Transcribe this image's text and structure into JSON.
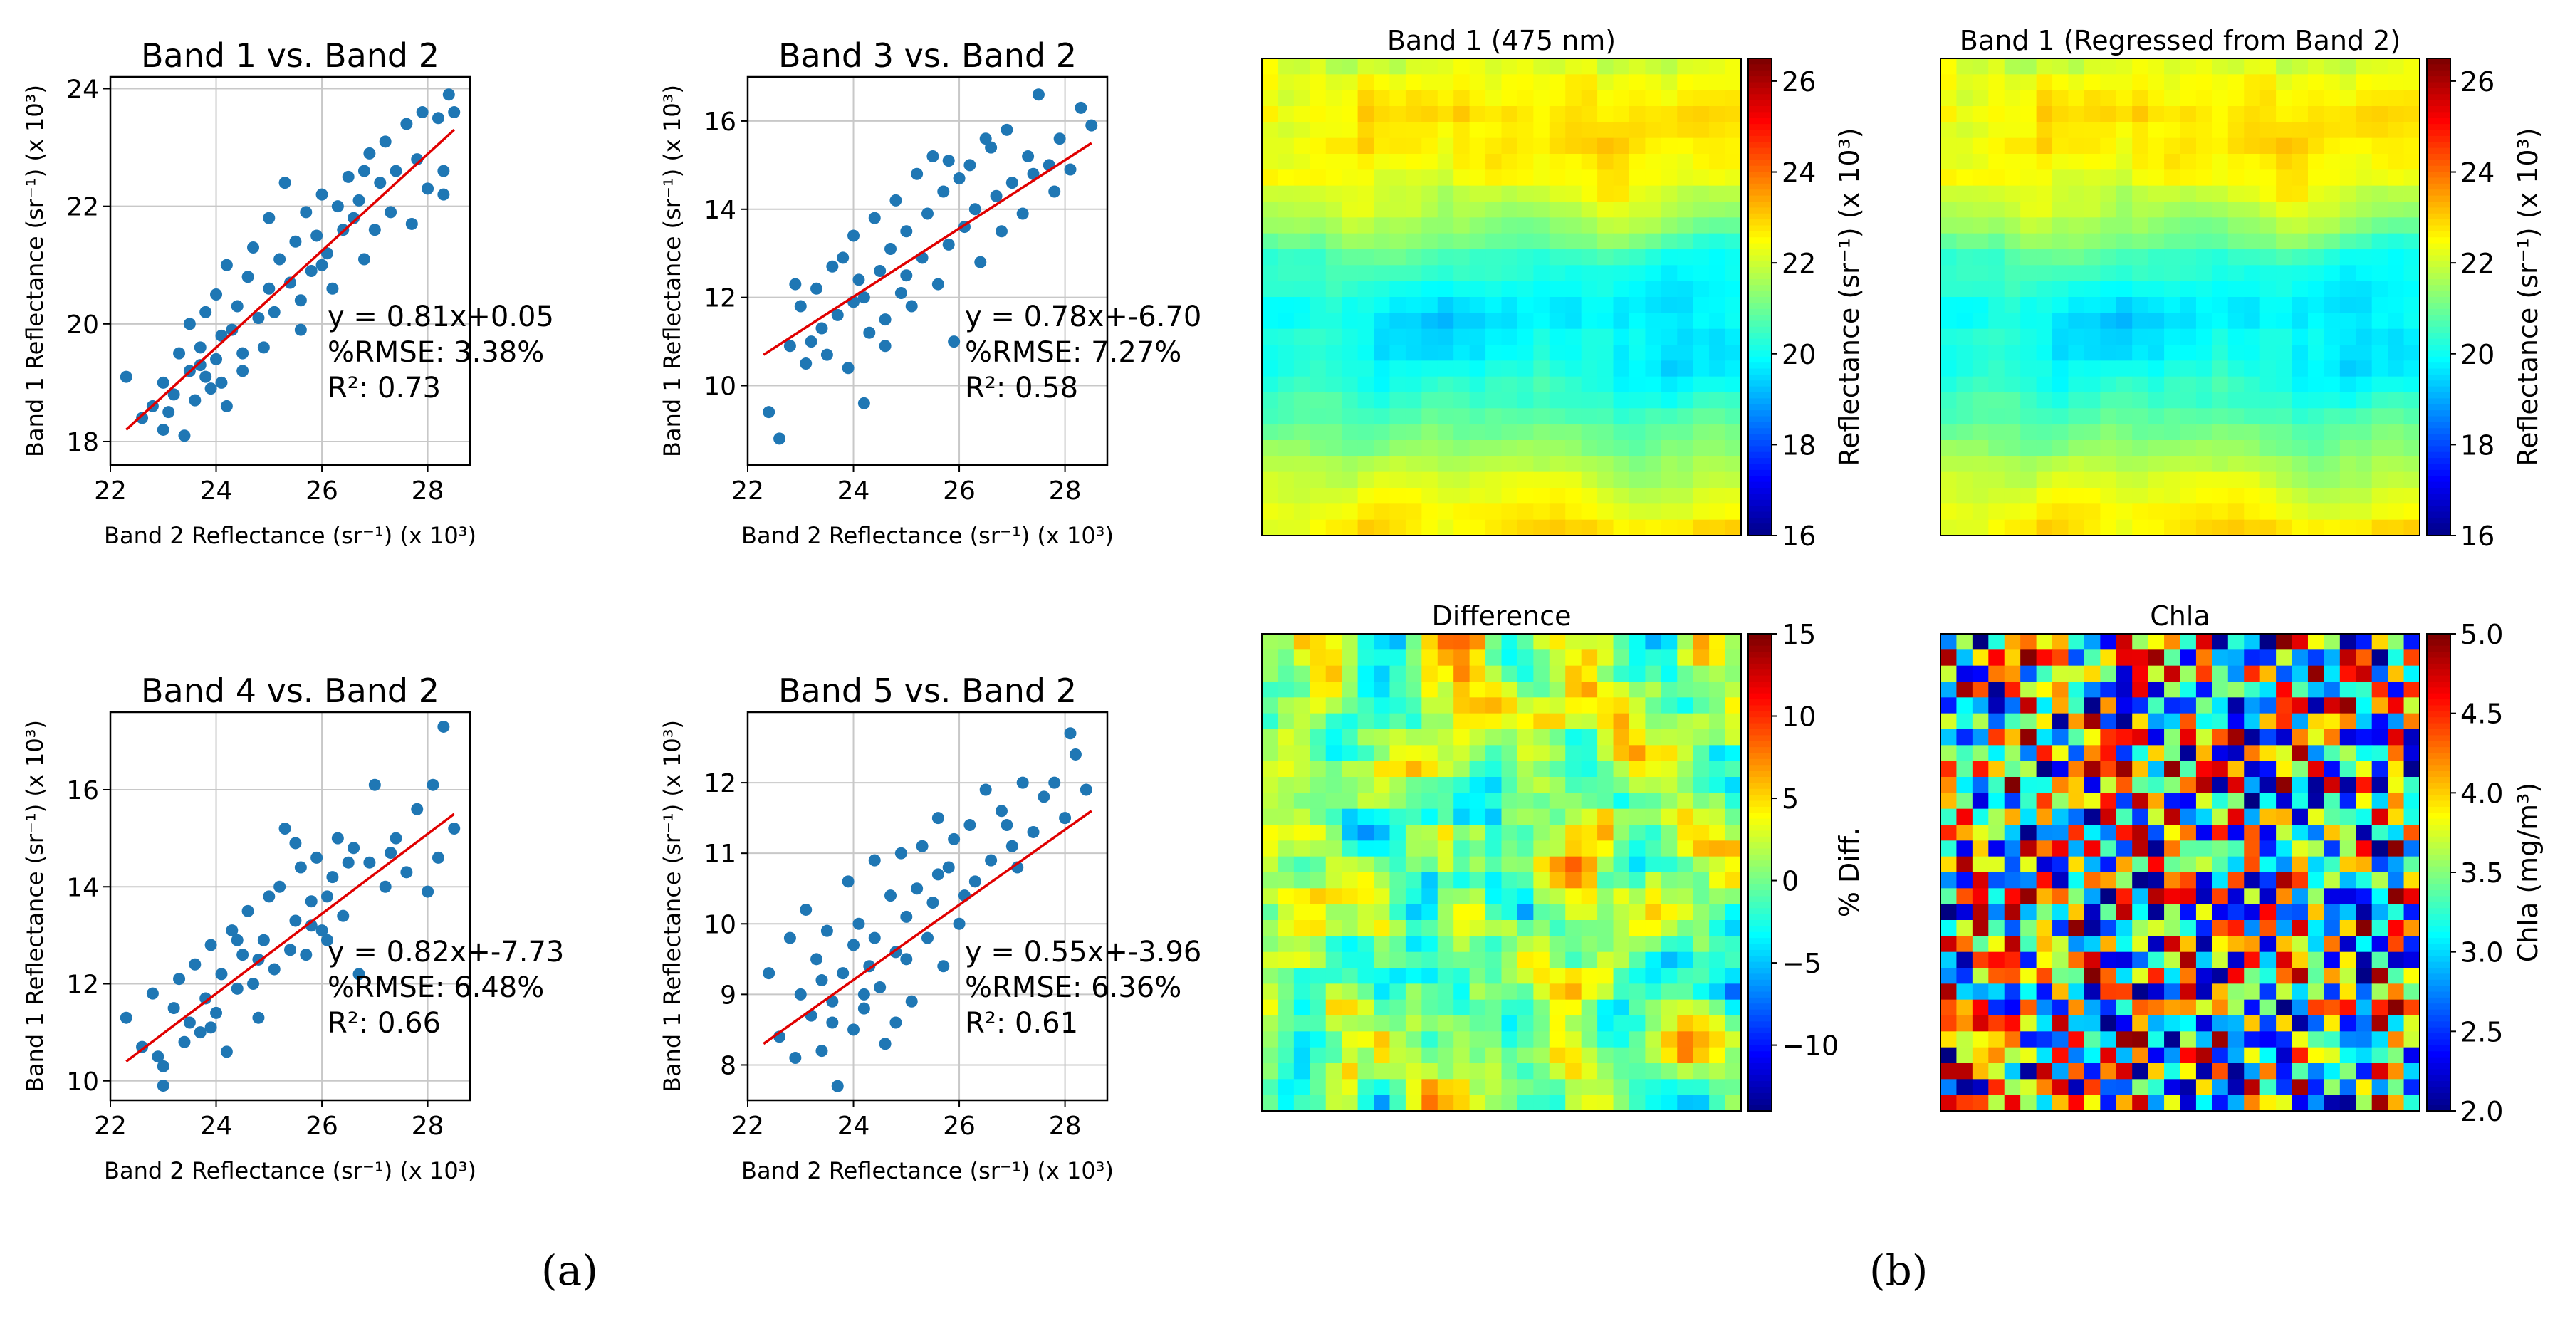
{
  "panel_labels": {
    "a": "(a)",
    "b": "(b)"
  },
  "scatter_common": {
    "xlabel": "Band 2 Reflectance (sr⁻¹) (x 10³)",
    "ylabel": "Band 1 Reflectance (sr⁻¹) (x 10³)"
  },
  "chart_data": [
    {
      "type": "scatter",
      "title": "Band 1 vs. Band 2",
      "xlabel": "Band 2 Reflectance (sr⁻¹) (x 10³)",
      "ylabel": "Band 1 Reflectance (sr⁻¹) (x 10³)",
      "xlim": [
        22,
        28.8
      ],
      "ylim": [
        17.6,
        24.2
      ],
      "xticks": [
        22,
        24,
        26,
        28
      ],
      "yticks": [
        18,
        20,
        22,
        24
      ],
      "grid": true,
      "fit": {
        "slope": 0.81,
        "intercept": 0.05,
        "x_range": [
          22.3,
          28.5
        ],
        "y_range": [
          18.2,
          23.3
        ]
      },
      "annotations": [
        "y = 0.81x+0.05",
        "%RMSE:  3.38%",
        "R²:  0.73"
      ],
      "points": [
        [
          22.3,
          19.1
        ],
        [
          22.6,
          18.4
        ],
        [
          22.8,
          18.6
        ],
        [
          23.0,
          19.0
        ],
        [
          23.0,
          18.2
        ],
        [
          23.2,
          18.8
        ],
        [
          23.3,
          19.5
        ],
        [
          23.4,
          18.1
        ],
        [
          23.5,
          19.2
        ],
        [
          23.5,
          20.0
        ],
        [
          23.6,
          18.7
        ],
        [
          23.7,
          19.6
        ],
        [
          23.8,
          19.1
        ],
        [
          23.8,
          20.2
        ],
        [
          23.9,
          18.9
        ],
        [
          24.0,
          19.4
        ],
        [
          24.0,
          20.5
        ],
        [
          24.1,
          19.8
        ],
        [
          24.2,
          18.6
        ],
        [
          24.2,
          21.0
        ],
        [
          24.3,
          19.9
        ],
        [
          24.4,
          20.3
        ],
        [
          24.5,
          19.2
        ],
        [
          24.6,
          20.8
        ],
        [
          24.7,
          21.3
        ],
        [
          24.8,
          20.1
        ],
        [
          24.9,
          19.6
        ],
        [
          25.0,
          20.6
        ],
        [
          25.0,
          21.8
        ],
        [
          25.1,
          20.2
        ],
        [
          25.2,
          21.1
        ],
        [
          25.3,
          22.4
        ],
        [
          25.4,
          20.7
        ],
        [
          25.5,
          21.4
        ],
        [
          25.6,
          19.9
        ],
        [
          25.7,
          21.9
        ],
        [
          25.8,
          20.9
        ],
        [
          25.9,
          21.5
        ],
        [
          26.0,
          22.2
        ],
        [
          26.1,
          21.2
        ],
        [
          26.2,
          20.6
        ],
        [
          26.3,
          22.0
        ],
        [
          26.4,
          21.6
        ],
        [
          26.5,
          22.5
        ],
        [
          26.6,
          21.8
        ],
        [
          26.7,
          22.1
        ],
        [
          26.8,
          21.1
        ],
        [
          26.9,
          22.9
        ],
        [
          27.0,
          21.6
        ],
        [
          27.1,
          22.4
        ],
        [
          27.2,
          23.1
        ],
        [
          27.3,
          21.9
        ],
        [
          27.4,
          22.6
        ],
        [
          27.6,
          23.4
        ],
        [
          27.7,
          21.7
        ],
        [
          27.8,
          22.8
        ],
        [
          27.9,
          23.6
        ],
        [
          28.0,
          22.3
        ],
        [
          28.2,
          23.5
        ],
        [
          28.3,
          22.6
        ],
        [
          28.4,
          23.9
        ],
        [
          28.5,
          23.6
        ],
        [
          28.3,
          22.2
        ],
        [
          23.1,
          18.5
        ],
        [
          24.5,
          19.5
        ],
        [
          25.6,
          20.4
        ],
        [
          26.8,
          22.6
        ],
        [
          24.1,
          19.0
        ],
        [
          23.7,
          19.3
        ],
        [
          26.0,
          21.0
        ]
      ]
    },
    {
      "type": "scatter",
      "title": "Band 3 vs. Band 2",
      "xlabel": "Band 2 Reflectance (sr⁻¹) (x 10³)",
      "ylabel": "Band 1 Reflectance (sr⁻¹) (x 10³)",
      "xlim": [
        22,
        28.8
      ],
      "ylim": [
        8.2,
        17.0
      ],
      "xticks": [
        22,
        24,
        26,
        28
      ],
      "yticks": [
        10,
        12,
        14,
        16
      ],
      "grid": true,
      "fit": {
        "slope": 0.78,
        "intercept": -6.7,
        "x_range": [
          22.3,
          28.5
        ],
        "y_range": [
          10.7,
          15.5
        ]
      },
      "annotations": [
        "y = 0.78x+-6.70",
        "%RMSE:  7.27%",
        "R²:  0.58"
      ],
      "points": [
        [
          22.4,
          9.4
        ],
        [
          22.6,
          8.8
        ],
        [
          22.8,
          10.9
        ],
        [
          23.0,
          11.8
        ],
        [
          23.1,
          10.5
        ],
        [
          23.3,
          12.2
        ],
        [
          23.4,
          11.3
        ],
        [
          23.5,
          10.7
        ],
        [
          23.6,
          12.7
        ],
        [
          23.7,
          11.6
        ],
        [
          23.8,
          12.9
        ],
        [
          23.9,
          10.4
        ],
        [
          24.0,
          11.9
        ],
        [
          24.0,
          13.4
        ],
        [
          24.1,
          12.4
        ],
        [
          24.2,
          9.6
        ],
        [
          24.3,
          11.2
        ],
        [
          24.4,
          13.8
        ],
        [
          24.5,
          12.6
        ],
        [
          24.6,
          11.5
        ],
        [
          24.7,
          13.1
        ],
        [
          24.8,
          14.2
        ],
        [
          24.9,
          12.1
        ],
        [
          25.0,
          13.5
        ],
        [
          25.1,
          11.8
        ],
        [
          25.2,
          14.8
        ],
        [
          25.3,
          12.9
        ],
        [
          25.4,
          13.9
        ],
        [
          25.5,
          15.2
        ],
        [
          25.6,
          12.3
        ],
        [
          25.7,
          14.4
        ],
        [
          25.8,
          13.2
        ],
        [
          25.9,
          11.0
        ],
        [
          26.0,
          14.7
        ],
        [
          26.1,
          13.6
        ],
        [
          26.2,
          15.0
        ],
        [
          26.3,
          14.0
        ],
        [
          26.4,
          12.8
        ],
        [
          26.6,
          15.4
        ],
        [
          26.7,
          14.3
        ],
        [
          26.8,
          13.5
        ],
        [
          26.9,
          15.8
        ],
        [
          27.0,
          14.6
        ],
        [
          27.2,
          13.9
        ],
        [
          27.3,
          15.2
        ],
        [
          27.4,
          14.8
        ],
        [
          27.5,
          16.6
        ],
        [
          27.7,
          15.0
        ],
        [
          27.9,
          15.6
        ],
        [
          28.1,
          14.9
        ],
        [
          28.3,
          16.3
        ],
        [
          28.5,
          15.9
        ],
        [
          24.2,
          12.0
        ],
        [
          23.2,
          11.0
        ],
        [
          25.0,
          12.5
        ],
        [
          26.5,
          15.6
        ],
        [
          27.8,
          14.4
        ],
        [
          22.9,
          12.3
        ],
        [
          24.6,
          10.9
        ],
        [
          25.8,
          15.1
        ]
      ]
    },
    {
      "type": "scatter",
      "title": "Band 4 vs. Band 2",
      "xlabel": "Band 2 Reflectance (sr⁻¹) (x 10³)",
      "ylabel": "Band 1 Reflectance (sr⁻¹) (x 10³)",
      "xlim": [
        22,
        28.8
      ],
      "ylim": [
        9.6,
        17.6
      ],
      "xticks": [
        22,
        24,
        26,
        28
      ],
      "yticks": [
        10,
        12,
        14,
        16
      ],
      "grid": true,
      "fit": {
        "slope": 0.82,
        "intercept": -7.73,
        "x_range": [
          22.3,
          28.5
        ],
        "y_range": [
          10.4,
          15.5
        ]
      },
      "annotations": [
        "y = 0.82x+-7.73",
        "%RMSE:  6.48%",
        "R²:  0.66"
      ],
      "points": [
        [
          22.3,
          11.3
        ],
        [
          22.6,
          10.7
        ],
        [
          22.8,
          11.8
        ],
        [
          23.0,
          10.3
        ],
        [
          23.0,
          9.9
        ],
        [
          23.2,
          11.5
        ],
        [
          23.3,
          12.1
        ],
        [
          23.4,
          10.8
        ],
        [
          23.5,
          11.2
        ],
        [
          23.6,
          12.4
        ],
        [
          23.7,
          11.0
        ],
        [
          23.8,
          11.7
        ],
        [
          23.9,
          12.8
        ],
        [
          24.0,
          11.4
        ],
        [
          24.1,
          12.2
        ],
        [
          24.2,
          10.6
        ],
        [
          24.3,
          13.1
        ],
        [
          24.4,
          11.9
        ],
        [
          24.5,
          12.6
        ],
        [
          24.6,
          13.5
        ],
        [
          24.7,
          12.0
        ],
        [
          24.8,
          11.3
        ],
        [
          24.9,
          12.9
        ],
        [
          25.0,
          13.8
        ],
        [
          25.1,
          12.3
        ],
        [
          25.2,
          14.0
        ],
        [
          25.3,
          15.2
        ],
        [
          25.4,
          12.7
        ],
        [
          25.5,
          13.3
        ],
        [
          25.6,
          14.4
        ],
        [
          25.7,
          12.6
        ],
        [
          25.8,
          13.7
        ],
        [
          25.9,
          14.6
        ],
        [
          26.0,
          13.1
        ],
        [
          26.1,
          12.9
        ],
        [
          26.2,
          14.2
        ],
        [
          26.3,
          15.0
        ],
        [
          26.4,
          13.4
        ],
        [
          26.6,
          14.8
        ],
        [
          26.7,
          12.2
        ],
        [
          26.9,
          14.5
        ],
        [
          27.0,
          16.1
        ],
        [
          27.2,
          14.0
        ],
        [
          27.4,
          15.0
        ],
        [
          27.6,
          14.3
        ],
        [
          27.8,
          15.6
        ],
        [
          28.0,
          13.9
        ],
        [
          28.1,
          16.1
        ],
        [
          28.2,
          14.6
        ],
        [
          28.3,
          17.3
        ],
        [
          28.5,
          15.2
        ],
        [
          23.9,
          11.1
        ],
        [
          24.4,
          12.9
        ],
        [
          25.8,
          13.2
        ],
        [
          26.5,
          14.5
        ],
        [
          27.3,
          14.7
        ],
        [
          22.9,
          10.5
        ],
        [
          24.8,
          12.5
        ],
        [
          25.5,
          14.9
        ],
        [
          26.1,
          13.8
        ]
      ]
    },
    {
      "type": "scatter",
      "title": "Band 5 vs. Band 2",
      "xlabel": "Band 2 Reflectance (sr⁻¹) (x 10³)",
      "ylabel": "Band 1 Reflectance (sr⁻¹) (x 10³)",
      "xlim": [
        22,
        28.8
      ],
      "ylim": [
        7.5,
        13.0
      ],
      "xticks": [
        22,
        24,
        26,
        28
      ],
      "yticks": [
        8,
        9,
        10,
        11,
        12
      ],
      "grid": true,
      "fit": {
        "slope": 0.55,
        "intercept": -3.96,
        "x_range": [
          22.3,
          28.5
        ],
        "y_range": [
          8.3,
          11.6
        ]
      },
      "annotations": [
        "y = 0.55x+-3.96",
        "%RMSE:  6.36%",
        "R²:  0.61"
      ],
      "points": [
        [
          22.4,
          9.3
        ],
        [
          22.6,
          8.4
        ],
        [
          22.8,
          9.8
        ],
        [
          22.9,
          8.1
        ],
        [
          23.0,
          9.0
        ],
        [
          23.1,
          10.2
        ],
        [
          23.2,
          8.7
        ],
        [
          23.3,
          9.5
        ],
        [
          23.4,
          8.2
        ],
        [
          23.5,
          9.9
        ],
        [
          23.6,
          8.9
        ],
        [
          23.7,
          7.7
        ],
        [
          23.8,
          9.3
        ],
        [
          23.9,
          10.6
        ],
        [
          24.0,
          8.5
        ],
        [
          24.0,
          9.7
        ],
        [
          24.1,
          10.0
        ],
        [
          24.2,
          8.8
        ],
        [
          24.3,
          9.4
        ],
        [
          24.4,
          10.9
        ],
        [
          24.5,
          9.1
        ],
        [
          24.6,
          8.3
        ],
        [
          24.7,
          10.4
        ],
        [
          24.8,
          9.6
        ],
        [
          24.9,
          11.0
        ],
        [
          25.0,
          10.1
        ],
        [
          25.1,
          8.9
        ],
        [
          25.2,
          10.5
        ],
        [
          25.3,
          11.1
        ],
        [
          25.4,
          9.8
        ],
        [
          25.5,
          10.3
        ],
        [
          25.6,
          11.5
        ],
        [
          25.7,
          9.4
        ],
        [
          25.8,
          10.8
        ],
        [
          25.9,
          11.2
        ],
        [
          26.0,
          10.0
        ],
        [
          26.2,
          11.4
        ],
        [
          26.3,
          10.6
        ],
        [
          26.5,
          11.9
        ],
        [
          26.6,
          10.9
        ],
        [
          26.8,
          11.6
        ],
        [
          27.0,
          11.1
        ],
        [
          27.2,
          12.0
        ],
        [
          27.4,
          11.3
        ],
        [
          27.6,
          11.8
        ],
        [
          27.8,
          12.0
        ],
        [
          28.0,
          11.5
        ],
        [
          28.1,
          12.7
        ],
        [
          28.2,
          12.4
        ],
        [
          28.4,
          11.9
        ],
        [
          24.2,
          9.0
        ],
        [
          23.6,
          8.6
        ],
        [
          25.0,
          9.5
        ],
        [
          26.1,
          10.4
        ],
        [
          24.8,
          8.6
        ],
        [
          23.4,
          9.2
        ],
        [
          25.6,
          10.7
        ],
        [
          27.1,
          10.8
        ],
        [
          24.4,
          9.8
        ],
        [
          26.9,
          11.4
        ]
      ]
    },
    {
      "type": "heatmap",
      "title": "Band 1 (475 nm)",
      "colorbar_label": "Reflectance (sr⁻¹) (x 10³)",
      "colorscale": "jet",
      "vmin": 16,
      "vmax": 26.5,
      "colorbar_ticks": [
        16,
        18,
        20,
        22,
        24,
        26
      ],
      "grid_size": 30,
      "pattern": "smooth",
      "seed": 11
    },
    {
      "type": "heatmap",
      "title": "Band 1 (Regressed from Band 2)",
      "colorbar_label": "Reflectance (sr⁻¹) (x 10³)",
      "colorscale": "jet",
      "vmin": 16,
      "vmax": 26.5,
      "colorbar_ticks": [
        16,
        18,
        20,
        22,
        24,
        26
      ],
      "grid_size": 30,
      "pattern": "smooth",
      "seed": 11
    },
    {
      "type": "heatmap",
      "title": "Difference",
      "colorbar_label": "% Diff.",
      "colorscale": "jet",
      "vmin": -14,
      "vmax": 15,
      "colorbar_ticks": [
        -10,
        -5,
        0,
        5,
        10,
        15
      ],
      "grid_size": 30,
      "pattern": "noisy",
      "seed": 29
    },
    {
      "type": "heatmap",
      "title": "Chla",
      "colorbar_label": "Chla (mg/m³)",
      "colorscale": "jet",
      "vmin": 2.0,
      "vmax": 5.0,
      "colorbar_ticks": [
        2.0,
        2.5,
        3.0,
        3.5,
        4.0,
        4.5,
        5.0
      ],
      "grid_size": 30,
      "pattern": "random",
      "seed": 47
    }
  ],
  "colors": {
    "points": "#1f77b4",
    "fit_line": "#e00000",
    "grid": "#c8c8c8"
  }
}
